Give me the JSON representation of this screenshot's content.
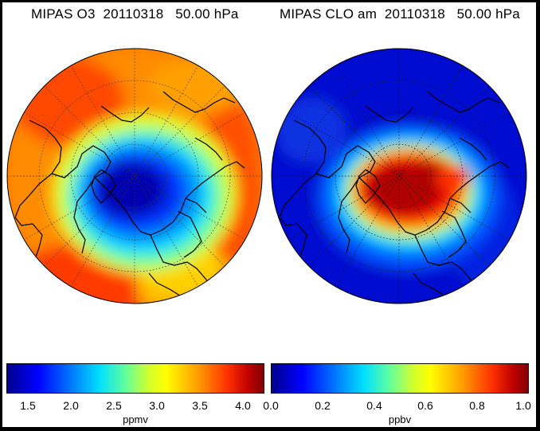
{
  "panels": [
    {
      "title": "MIPAS O3  20110318   50.00 hPa",
      "units": "ppmv",
      "ticks": [
        "1.5",
        "2.0",
        "2.5",
        "3.0",
        "3.5",
        "4.0"
      ],
      "colorbar_range": [
        1.25,
        4.25
      ],
      "field_pattern": "ozone-low-centre-high-rim"
    },
    {
      "title": "MIPAS CLO am  20110318   50.00 hPa",
      "units": "ppbv",
      "ticks": [
        "0.0",
        "0.2",
        "0.4",
        "0.6",
        "0.8",
        "1.0"
      ],
      "colorbar_range": [
        0.0,
        1.0
      ],
      "field_pattern": "chlorine-high-core"
    }
  ],
  "colors": {
    "background": "#000000",
    "panel": "#ffffff",
    "coastline": "#000000",
    "gridline": "#333333"
  }
}
